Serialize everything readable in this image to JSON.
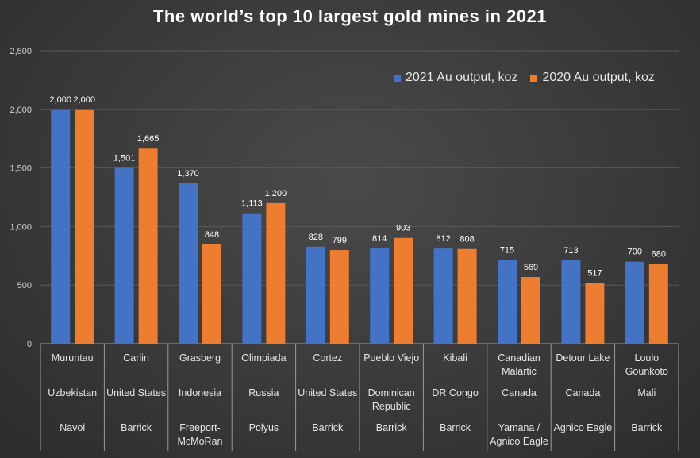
{
  "colors": {
    "series_2021": "#4472C4",
    "series_2020": "#ED7D31",
    "grid": "#595959",
    "text": "#d9d9d9"
  },
  "chart_data": {
    "type": "bar",
    "title": "The world’s top 10 largest gold mines in 2021",
    "xlabel": "",
    "ylabel": "",
    "ylim": [
      0,
      2500
    ],
    "yticks": [
      "0",
      "500",
      "1,000",
      "1,500",
      "2,000",
      "2,500"
    ],
    "grid": true,
    "legend_position": "top-right",
    "categories": [
      {
        "mine": "Muruntau",
        "country": "Uzbekistan",
        "owner": "Navoi"
      },
      {
        "mine": "Carlin",
        "country": "United States",
        "owner": "Barrick"
      },
      {
        "mine": "Grasberg",
        "country": "Indonesia",
        "owner": "Freeport-McMoRan"
      },
      {
        "mine": "Olimpiada",
        "country": "Russia",
        "owner": "Polyus"
      },
      {
        "mine": "Cortez",
        "country": "United States",
        "owner": "Barrick"
      },
      {
        "mine": "Pueblo Viejo",
        "country": "Dominican Republic",
        "owner": "Barrick"
      },
      {
        "mine": "Kibali",
        "country": "DR Congo",
        "owner": "Barrick"
      },
      {
        "mine": "Canadian Malartic",
        "country": "Canada",
        "owner": "Yamana / Agnico Eagle"
      },
      {
        "mine": "Detour Lake",
        "country": "Canada",
        "owner": "Agnico Eagle"
      },
      {
        "mine": "Loulo Gounkoto",
        "country": "Mali",
        "owner": "Barrick"
      }
    ],
    "series": [
      {
        "name": "2021 Au output, koz",
        "values": [
          2000,
          1501,
          1370,
          1113,
          828,
          814,
          812,
          715,
          713,
          700
        ],
        "labels": [
          "2,000",
          "1,501",
          "1,370",
          "1,113",
          "828",
          "814",
          "812",
          "715",
          "713",
          "700"
        ]
      },
      {
        "name": "2020 Au output, koz",
        "values": [
          2000,
          1665,
          848,
          1200,
          799,
          903,
          808,
          569,
          517,
          680
        ],
        "labels": [
          "2,000",
          "1,665",
          "848",
          "1,200",
          "799",
          "903",
          "808",
          "569",
          "517",
          "680"
        ]
      }
    ]
  }
}
